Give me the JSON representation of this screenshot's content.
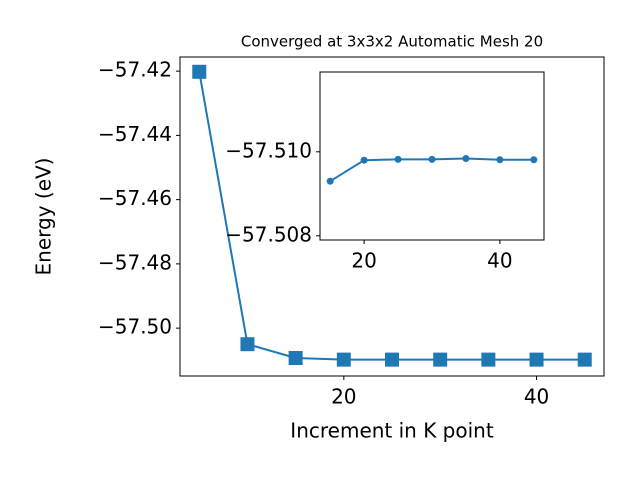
{
  "chart_data": [
    {
      "type": "line",
      "title": "Converged at 3x3x2 Automatic Mesh 20",
      "x_label": "Increment in K point",
      "y_label": "Energy (eV)",
      "x": [
        5,
        10,
        15,
        20,
        25,
        30,
        35,
        40,
        45
      ],
      "series": [
        {
          "color": "#1f77b4",
          "marker": "square",
          "values": [
            -57.4202,
            -57.505,
            -57.5093,
            -57.5098,
            -57.5098,
            -57.5098,
            -57.5098,
            -57.5098,
            -57.5098
          ]
        }
      ],
      "xlim": [
        3,
        47
      ],
      "xticks": [
        20,
        40
      ],
      "ylim": [
        -57.5149,
        -57.4156
      ],
      "yticks": [
        {
          "value": -57.5,
          "label": "−57.50"
        },
        {
          "value": -57.48,
          "label": "−57.48"
        },
        {
          "value": -57.46,
          "label": "−57.46"
        },
        {
          "value": -57.44,
          "label": "−57.44"
        },
        {
          "value": -57.42,
          "label": "−57.42"
        }
      ]
    },
    {
      "type": "line",
      "x": [
        15,
        20,
        25,
        30,
        35,
        40,
        45
      ],
      "series": [
        {
          "color": "#1f77b4",
          "marker": "circle",
          "values": [
            -57.5093,
            -57.5098,
            -57.50982,
            -57.50982,
            -57.50984,
            -57.50981,
            -57.50981
          ]
        }
      ],
      "xlim": [
        13.5,
        46.5
      ],
      "xticks": [
        20,
        40
      ],
      "ylim": [
        -57.5079,
        -57.5119
      ],
      "yticks": [
        {
          "value": -57.508,
          "label": "−57.508"
        },
        {
          "value": -57.51,
          "label": "−57.510"
        }
      ]
    }
  ]
}
